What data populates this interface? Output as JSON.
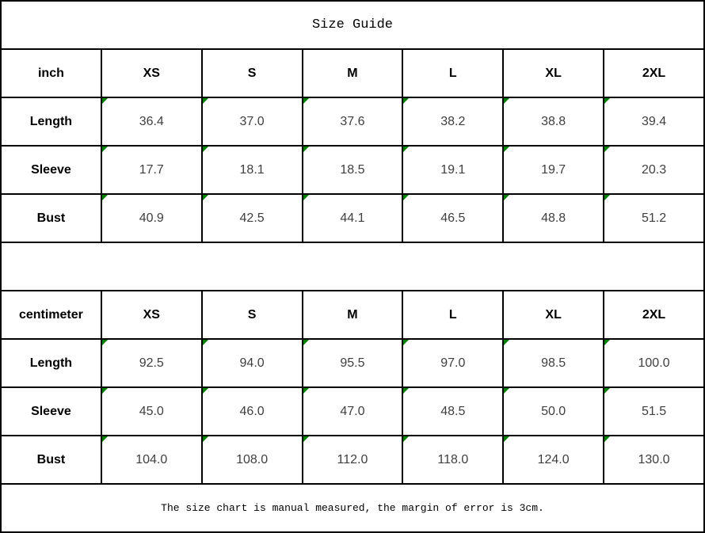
{
  "title": "Size Guide",
  "footer_note": "The size chart is manual measured, the margin of error is 3cm.",
  "colors": {
    "border_color": "#000000",
    "header_text": "#000000",
    "value_text": "#3f3f3f",
    "flag_green": "#008000",
    "background": "#ffffff"
  },
  "tables": [
    {
      "unit": "inch",
      "columns": [
        "XS",
        "S",
        "M",
        "L",
        "XL",
        "2XL"
      ],
      "rows": [
        {
          "label": "Length",
          "values": [
            "36.4",
            "37.0",
            "37.6",
            "38.2",
            "38.8",
            "39.4"
          ]
        },
        {
          "label": "Sleeve",
          "values": [
            "17.7",
            "18.1",
            "18.5",
            "19.1",
            "19.7",
            "20.3"
          ]
        },
        {
          "label": "Bust",
          "values": [
            "40.9",
            "42.5",
            "44.1",
            "46.5",
            "48.8",
            "51.2"
          ]
        }
      ]
    },
    {
      "unit": "centimeter",
      "columns": [
        "XS",
        "S",
        "M",
        "L",
        "XL",
        "2XL"
      ],
      "rows": [
        {
          "label": "Length",
          "values": [
            "92.5",
            "94.0",
            "95.5",
            "97.0",
            "98.5",
            "100.0"
          ]
        },
        {
          "label": "Sleeve",
          "values": [
            "45.0",
            "46.0",
            "47.0",
            "48.5",
            "50.0",
            "51.5"
          ]
        },
        {
          "label": "Bust",
          "values": [
            "104.0",
            "108.0",
            "112.0",
            "118.0",
            "124.0",
            "130.0"
          ]
        }
      ]
    }
  ],
  "chart_data": [
    {
      "type": "table",
      "title": "Size Guide",
      "unit": "inch",
      "columns": [
        "inch",
        "XS",
        "S",
        "M",
        "L",
        "XL",
        "2XL"
      ],
      "rows": [
        [
          "Length",
          36.4,
          37.0,
          37.6,
          38.2,
          38.8,
          39.4
        ],
        [
          "Sleeve",
          17.7,
          18.1,
          18.5,
          19.1,
          19.7,
          20.3
        ],
        [
          "Bust",
          40.9,
          42.5,
          44.1,
          46.5,
          48.8,
          51.2
        ]
      ]
    },
    {
      "type": "table",
      "title": "Size Guide",
      "unit": "centimeter",
      "columns": [
        "centimeter",
        "XS",
        "S",
        "M",
        "L",
        "XL",
        "2XL"
      ],
      "rows": [
        [
          "Length",
          92.5,
          94.0,
          95.5,
          97.0,
          98.5,
          100.0
        ],
        [
          "Sleeve",
          45.0,
          46.0,
          47.0,
          48.5,
          50.0,
          51.5
        ],
        [
          "Bust",
          104.0,
          108.0,
          112.0,
          118.0,
          124.0,
          130.0
        ]
      ],
      "note": "The size chart is manual measured, the margin of error is 3cm."
    }
  ]
}
